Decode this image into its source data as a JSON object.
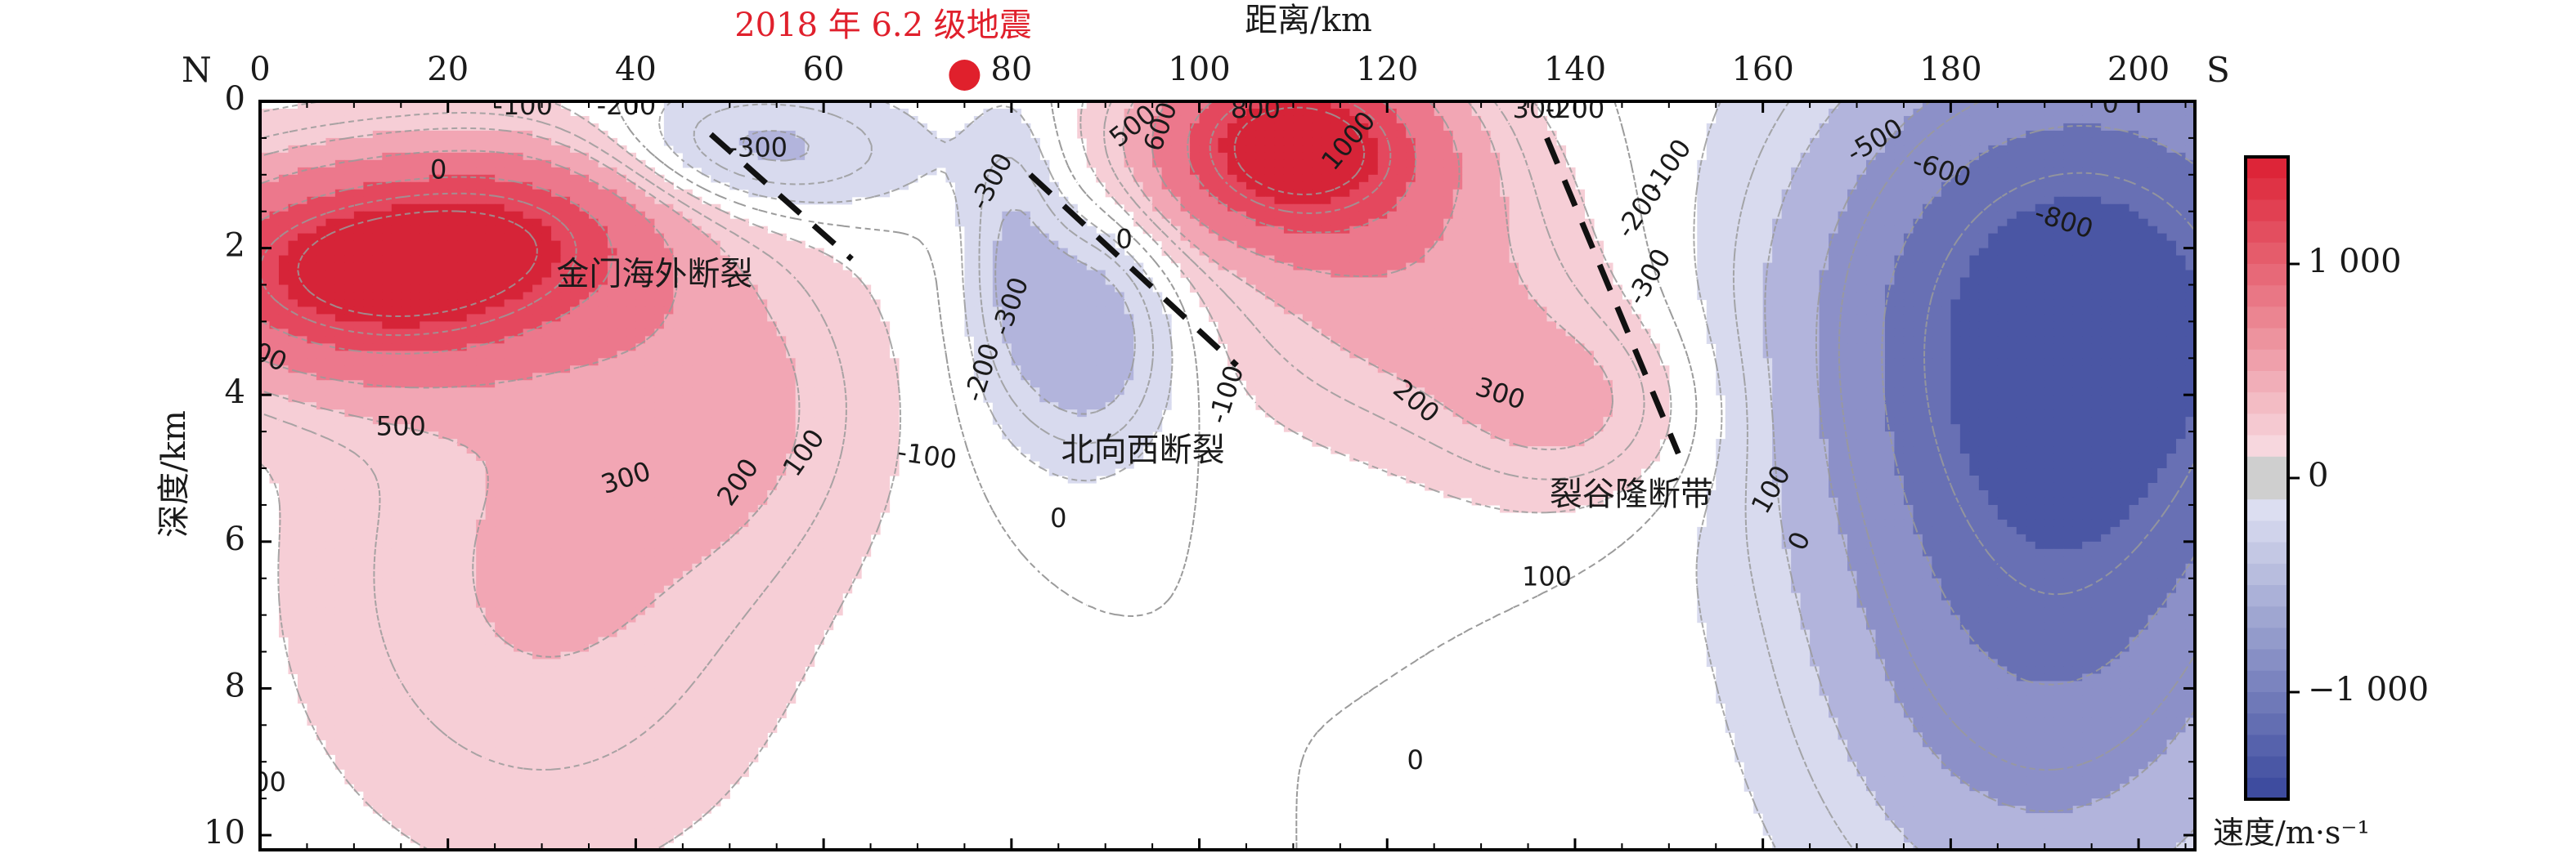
{
  "chart_data": {
    "type": "heatmap",
    "subtype": "velocity cross-section (filled contours)",
    "title": "",
    "event_label": "2018 年 6.2 级地震",
    "event_color": "#e0202c",
    "event_distance_km": 75,
    "xlabel": "距离/km",
    "ylabel": "深度/km",
    "x_direction_left": "N",
    "x_direction_right": "S",
    "xlim": [
      0,
      206
    ],
    "ylim": [
      10.2,
      0
    ],
    "xticks": [
      0,
      20,
      40,
      60,
      80,
      100,
      120,
      140,
      160,
      180,
      200
    ],
    "yticks": [
      0,
      2,
      4,
      6,
      8,
      10
    ],
    "colorbar": {
      "label": "速度/m·s⁻¹",
      "ticks": [
        {
          "value": 1000,
          "text": "1 000"
        },
        {
          "value": 0,
          "text": "0"
        },
        {
          "value": -1000,
          "text": "−1 000"
        }
      ],
      "range": [
        -1500,
        1500
      ],
      "positive_color": "#e0283e",
      "negative_color": "#3a4aa0"
    },
    "features": [
      {
        "name": "金门海外断裂",
        "x": 42,
        "depth": 2.5,
        "label_color": "#1a1a1a"
      },
      {
        "name": "北向西断裂",
        "x": 94,
        "depth": 4.9,
        "label_color": "#1a1a1a"
      },
      {
        "name": "裂谷隆断带",
        "x": 146,
        "depth": 5.5,
        "label_color": "#1a1a1a"
      }
    ],
    "faults": [
      {
        "x": [
          48,
          63
        ],
        "depth": [
          0.45,
          2.15
        ]
      },
      {
        "x": [
          82,
          104
        ],
        "depth": [
          1.0,
          3.6
        ]
      },
      {
        "x": [
          137,
          151
        ],
        "depth": [
          0.5,
          4.8
        ]
      }
    ],
    "anomalies": [
      {
        "x": 12,
        "depth": 2.3,
        "rx": 22,
        "rd": 1.4,
        "value": 1300
      },
      {
        "x": 30,
        "depth": 1.6,
        "rx": 16,
        "rd": 1.2,
        "value": 500
      },
      {
        "x": 30,
        "depth": 6.5,
        "rx": 26,
        "rd": 3.8,
        "value": 320
      },
      {
        "x": 50,
        "depth": 4.0,
        "rx": 16,
        "rd": 2.2,
        "value": 280
      },
      {
        "x": 110,
        "depth": 0.6,
        "rx": 15,
        "rd": 1.25,
        "value": 1350
      },
      {
        "x": 122,
        "depth": 2.5,
        "rx": 20,
        "rd": 2.0,
        "value": 380
      },
      {
        "x": 140,
        "depth": 4.2,
        "rx": 14,
        "rd": 1.3,
        "value": 320
      },
      {
        "x": 52,
        "depth": 0.7,
        "rx": 17,
        "rd": 0.9,
        "value": -400
      },
      {
        "x": 88,
        "depth": 3.2,
        "rx": 9,
        "rd": 1.6,
        "value": -480
      },
      {
        "x": 80,
        "depth": 1.8,
        "rx": 5,
        "rd": 1.8,
        "value": -250
      },
      {
        "x": 194,
        "depth": 2.8,
        "rx": 28,
        "rd": 3.6,
        "value": -1250
      },
      {
        "x": 190,
        "depth": 7.5,
        "rx": 24,
        "rd": 3.8,
        "value": -650
      }
    ],
    "contour_labels": [
      {
        "text": "-100",
        "x": 28,
        "depth": 0.08,
        "angle": 0
      },
      {
        "text": "-200",
        "x": 39,
        "depth": 0.08,
        "angle": 0
      },
      {
        "text": "-300",
        "x": 53,
        "depth": 0.65,
        "angle": 0
      },
      {
        "text": "0",
        "x": 19,
        "depth": 0.95,
        "angle": 0
      },
      {
        "text": "-300",
        "x": 78,
        "depth": 1.1,
        "angle": -62
      },
      {
        "text": "0",
        "x": 92,
        "depth": 1.9,
        "angle": 0
      },
      {
        "text": "-300",
        "x": 80,
        "depth": 2.8,
        "angle": -70
      },
      {
        "text": "-200",
        "x": 77,
        "depth": 3.7,
        "angle": -72
      },
      {
        "text": "-100",
        "x": 71,
        "depth": 4.85,
        "angle": 8
      },
      {
        "text": "-100",
        "x": 103,
        "depth": 4.0,
        "angle": -72
      },
      {
        "text": "0",
        "x": 85,
        "depth": 5.7,
        "angle": 0
      },
      {
        "text": "500",
        "x": 93,
        "depth": 0.35,
        "angle": -38
      },
      {
        "text": "600",
        "x": 96,
        "depth": 0.35,
        "angle": -70
      },
      {
        "text": "800",
        "x": 106,
        "depth": 0.12,
        "angle": 0
      },
      {
        "text": "1000",
        "x": 116,
        "depth": 0.55,
        "angle": -50
      },
      {
        "text": "300",
        "x": 136,
        "depth": 0.12,
        "angle": 0
      },
      {
        "text": "-200",
        "x": 140,
        "depth": 0.12,
        "angle": 0
      },
      {
        "text": "-100",
        "x": 150,
        "depth": 0.9,
        "angle": -55
      },
      {
        "text": "-200",
        "x": 147,
        "depth": 1.5,
        "angle": -55
      },
      {
        "text": "-300",
        "x": 148,
        "depth": 2.4,
        "angle": -60
      },
      {
        "text": "-500",
        "x": 172,
        "depth": 0.55,
        "angle": -30
      },
      {
        "text": "-600",
        "x": 179,
        "depth": 0.95,
        "angle": 18
      },
      {
        "text": "-800",
        "x": 192,
        "depth": 1.65,
        "angle": 18
      },
      {
        "text": "0",
        "x": 197,
        "depth": 0.05,
        "angle": 0
      },
      {
        "text": "00",
        "x": 1,
        "depth": 3.5,
        "angle": 25
      },
      {
        "text": "500",
        "x": 15,
        "depth": 4.45,
        "angle": 0
      },
      {
        "text": "300",
        "x": 39,
        "depth": 5.15,
        "angle": -18
      },
      {
        "text": "200",
        "x": 51,
        "depth": 5.2,
        "angle": -55
      },
      {
        "text": "100",
        "x": 58,
        "depth": 4.8,
        "angle": -55
      },
      {
        "text": "200",
        "x": 123,
        "depth": 4.1,
        "angle": 40
      },
      {
        "text": "300",
        "x": 132,
        "depth": 4.0,
        "angle": 18
      },
      {
        "text": "100",
        "x": 137,
        "depth": 6.5,
        "angle": 0
      },
      {
        "text": "100",
        "x": 161,
        "depth": 5.3,
        "angle": -60
      },
      {
        "text": "0",
        "x": 164,
        "depth": 6.0,
        "angle": -65
      },
      {
        "text": "0",
        "x": 123,
        "depth": 9.0,
        "angle": 0
      },
      {
        "text": "00",
        "x": 1,
        "depth": 9.3,
        "angle": 0
      }
    ],
    "grid": false,
    "legend": "colorbar-right"
  }
}
